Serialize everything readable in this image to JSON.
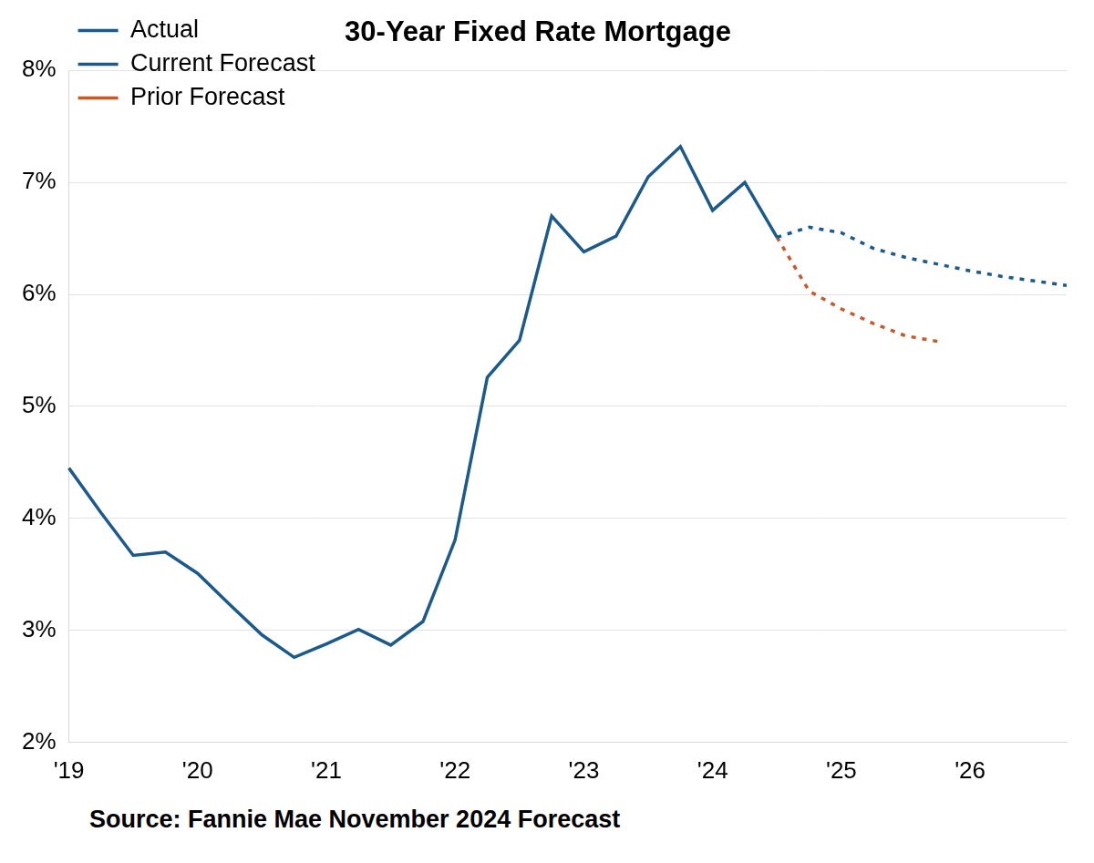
{
  "chart_data": {
    "type": "line",
    "title": "30-Year Fixed Rate Mortgage",
    "source": "Source: Fannie Mae November 2024 Forecast",
    "categories": [
      "'19",
      null,
      null,
      null,
      "'20",
      null,
      null,
      null,
      "'21",
      null,
      null,
      null,
      "'22",
      null,
      null,
      null,
      "'23",
      null,
      null,
      null,
      "'24",
      null,
      null,
      null,
      "'25",
      null,
      null,
      null,
      "'26",
      null,
      null,
      null
    ],
    "series": [
      {
        "name": "Actual",
        "color": "#1b5a8a",
        "line_style": "solid",
        "values": [
          4.45,
          4.05,
          3.67,
          3.7,
          3.51,
          3.23,
          2.96,
          2.76,
          2.88,
          3.01,
          2.87,
          3.08,
          3.81,
          5.26,
          5.59,
          6.7,
          6.38,
          6.52,
          7.05,
          7.32,
          6.75,
          7.0,
          6.51,
          null,
          null,
          null,
          null,
          null,
          null,
          null,
          null,
          null
        ]
      },
      {
        "name": "Current Forecast",
        "color": "#1b5a8a",
        "line_style": "dotted",
        "values": [
          null,
          null,
          null,
          null,
          null,
          null,
          null,
          null,
          null,
          null,
          null,
          null,
          null,
          null,
          null,
          null,
          null,
          null,
          null,
          null,
          null,
          null,
          6.51,
          6.6,
          6.55,
          6.41,
          6.33,
          6.27,
          6.21,
          6.16,
          6.12,
          6.08
        ]
      },
      {
        "name": "Prior Forecast",
        "color": "#c55a2b",
        "line_style": "dotted",
        "values": [
          null,
          null,
          null,
          null,
          null,
          null,
          null,
          null,
          null,
          null,
          null,
          null,
          null,
          null,
          null,
          null,
          null,
          null,
          null,
          null,
          null,
          null,
          6.51,
          6.03,
          5.87,
          5.74,
          5.63,
          5.58,
          null,
          null,
          null,
          null
        ]
      }
    ],
    "ylim": [
      2,
      8
    ],
    "yticks": [
      {
        "value": 2,
        "label": "2%"
      },
      {
        "value": 3,
        "label": "3%"
      },
      {
        "value": 4,
        "label": "4%"
      },
      {
        "value": 5,
        "label": "5%"
      },
      {
        "value": 6,
        "label": "6%"
      },
      {
        "value": 7,
        "label": "7%"
      },
      {
        "value": 8,
        "label": "8%"
      }
    ],
    "grid": true,
    "legend": "upper left"
  }
}
